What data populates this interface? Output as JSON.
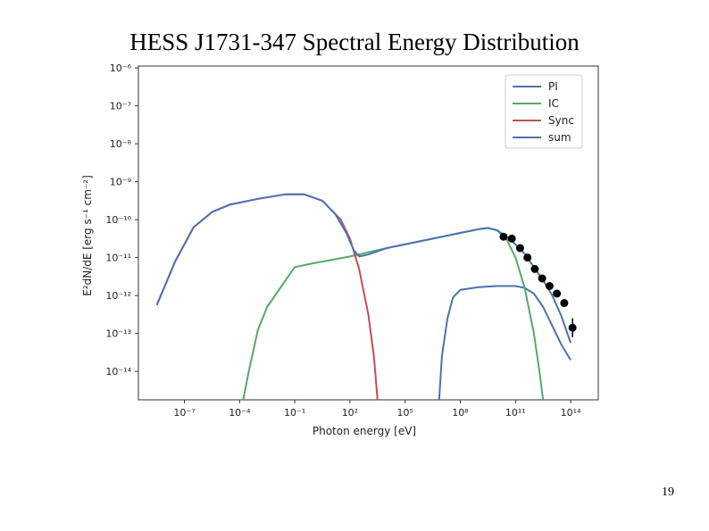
{
  "slide": {
    "title": "HESS J1731-347 Spectral Energy Distribution",
    "page_number": "19"
  },
  "colors": {
    "PI": "#4c72b0",
    "IC": "#55a868",
    "Sync": "#c44e52",
    "sum": "#4c72b0",
    "data": "#000000"
  },
  "chart_data": {
    "type": "line",
    "xscale": "log",
    "yscale": "log",
    "xlabel": "Photon energy [eV]",
    "ylabel": "E²dN/dE [erg s⁻¹ cm⁻²]",
    "xlim_exp": [
      -9.5,
      15.5
    ],
    "ylim_exp": [
      -14.75,
      -5.95
    ],
    "x_ticks": [
      {
        "exp": -7,
        "label": "10⁻⁷"
      },
      {
        "exp": -4,
        "label": "10⁻⁴"
      },
      {
        "exp": -1,
        "label": "10⁻¹"
      },
      {
        "exp": 2,
        "label": "10²"
      },
      {
        "exp": 5,
        "label": "10⁵"
      },
      {
        "exp": 8,
        "label": "10⁸"
      },
      {
        "exp": 11,
        "label": "10¹¹"
      },
      {
        "exp": 14,
        "label": "10¹⁴"
      }
    ],
    "y_ticks": [
      {
        "exp": -6,
        "label": "10⁻⁶"
      },
      {
        "exp": -7,
        "label": "10⁻⁷"
      },
      {
        "exp": -8,
        "label": "10⁻⁸"
      },
      {
        "exp": -9,
        "label": "10⁻⁹"
      },
      {
        "exp": -10,
        "label": "10⁻¹⁰"
      },
      {
        "exp": -11,
        "label": "10⁻¹¹"
      },
      {
        "exp": -12,
        "label": "10⁻¹²"
      },
      {
        "exp": -13,
        "label": "10⁻¹³"
      },
      {
        "exp": -14,
        "label": "10⁻¹⁴"
      }
    ],
    "legend": {
      "placement": "top-right",
      "entries": [
        "PI",
        "IC",
        "Sync",
        "sum"
      ]
    },
    "series": [
      {
        "name": "PI",
        "points": [
          [
            6.85,
            -14.75
          ],
          [
            7.0,
            -13.6
          ],
          [
            7.3,
            -12.6
          ],
          [
            7.6,
            -12.05
          ],
          [
            8.0,
            -11.85
          ],
          [
            9.0,
            -11.78
          ],
          [
            10.0,
            -11.75
          ],
          [
            11.0,
            -11.75
          ],
          [
            11.5,
            -11.8
          ],
          [
            12.0,
            -11.95
          ],
          [
            12.5,
            -12.3
          ],
          [
            13.0,
            -12.8
          ],
          [
            13.5,
            -13.3
          ],
          [
            14.0,
            -13.7
          ]
        ]
      },
      {
        "name": "IC",
        "points": [
          [
            -3.8,
            -14.75
          ],
          [
            -3.5,
            -14.0
          ],
          [
            -3.0,
            -12.9
          ],
          [
            -2.5,
            -12.3
          ],
          [
            -2.0,
            -11.95
          ],
          [
            -1.5,
            -11.6
          ],
          [
            -1.0,
            -11.25
          ],
          [
            0.0,
            -11.15
          ],
          [
            2.0,
            -10.97
          ],
          [
            4.0,
            -10.75
          ],
          [
            6.0,
            -10.55
          ],
          [
            8.0,
            -10.35
          ],
          [
            9.0,
            -10.25
          ],
          [
            9.5,
            -10.22
          ],
          [
            10.0,
            -10.28
          ],
          [
            10.5,
            -10.5
          ],
          [
            11.0,
            -11.0
          ],
          [
            11.5,
            -11.8
          ],
          [
            12.0,
            -13.0
          ],
          [
            12.3,
            -14.0
          ],
          [
            12.5,
            -14.75
          ]
        ]
      },
      {
        "name": "Sync",
        "points": [
          [
            -8.5,
            -12.25
          ],
          [
            -7.5,
            -11.1
          ],
          [
            -6.5,
            -10.2
          ],
          [
            -5.5,
            -9.8
          ],
          [
            -4.5,
            -9.6
          ],
          [
            -3.0,
            -9.45
          ],
          [
            -1.5,
            -9.33
          ],
          [
            -0.5,
            -9.33
          ],
          [
            0.5,
            -9.5
          ],
          [
            1.5,
            -10.0
          ],
          [
            2.0,
            -10.5
          ],
          [
            2.5,
            -11.3
          ],
          [
            3.0,
            -12.5
          ],
          [
            3.3,
            -13.6
          ],
          [
            3.5,
            -14.75
          ]
        ]
      },
      {
        "name": "sum",
        "points": [
          [
            -8.5,
            -12.25
          ],
          [
            -7.5,
            -11.1
          ],
          [
            -6.5,
            -10.2
          ],
          [
            -5.5,
            -9.8
          ],
          [
            -4.5,
            -9.6
          ],
          [
            -3.0,
            -9.45
          ],
          [
            -1.5,
            -9.33
          ],
          [
            -0.5,
            -9.33
          ],
          [
            0.5,
            -9.5
          ],
          [
            1.2,
            -9.85
          ],
          [
            1.8,
            -10.35
          ],
          [
            2.2,
            -10.8
          ],
          [
            2.5,
            -10.97
          ],
          [
            3.0,
            -10.92
          ],
          [
            4.0,
            -10.75
          ],
          [
            6.0,
            -10.55
          ],
          [
            8.0,
            -10.35
          ],
          [
            9.0,
            -10.25
          ],
          [
            9.5,
            -10.22
          ],
          [
            10.0,
            -10.28
          ],
          [
            10.5,
            -10.45
          ],
          [
            11.0,
            -10.65
          ],
          [
            11.5,
            -10.9
          ],
          [
            12.0,
            -11.25
          ],
          [
            12.5,
            -11.6
          ],
          [
            13.0,
            -12.0
          ],
          [
            13.5,
            -12.55
          ],
          [
            14.0,
            -13.25
          ]
        ]
      }
    ],
    "data_points": [
      {
        "x": 10.35,
        "y": -10.45,
        "err": 0.06
      },
      {
        "x": 10.8,
        "y": -10.5,
        "err": 0.06
      },
      {
        "x": 11.25,
        "y": -10.75,
        "err": 0.06
      },
      {
        "x": 11.65,
        "y": -11.0,
        "err": 0.06
      },
      {
        "x": 12.05,
        "y": -11.3,
        "err": 0.07
      },
      {
        "x": 12.45,
        "y": -11.55,
        "err": 0.08
      },
      {
        "x": 12.85,
        "y": -11.75,
        "err": 0.08
      },
      {
        "x": 13.25,
        "y": -11.95,
        "err": 0.09
      },
      {
        "x": 13.65,
        "y": -12.2,
        "err": 0.1
      },
      {
        "x": 14.1,
        "y": -12.85,
        "err": 0.25
      }
    ]
  }
}
